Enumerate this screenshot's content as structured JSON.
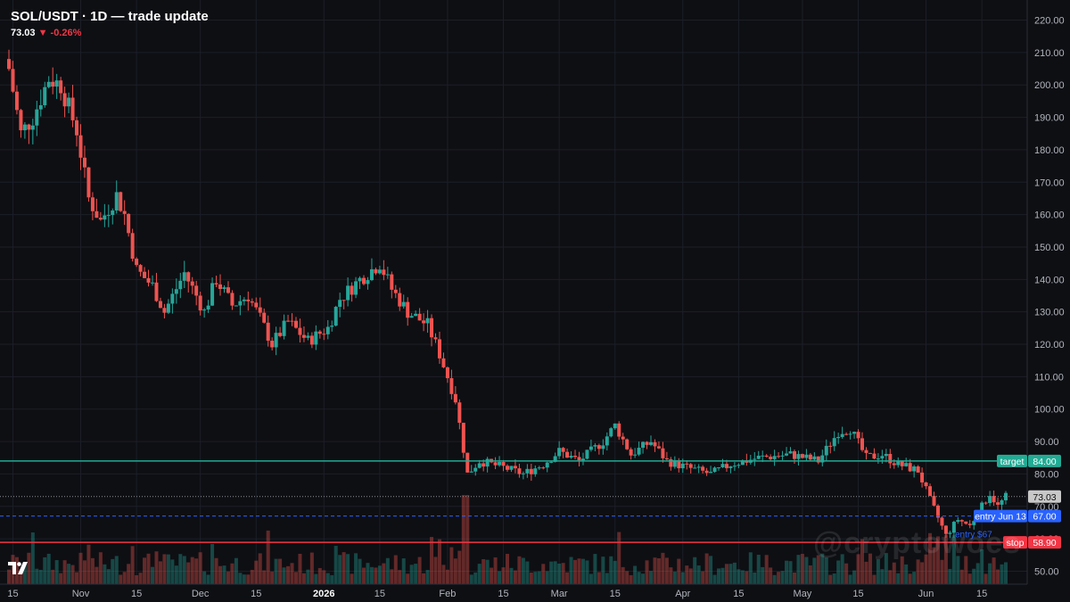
{
  "header": {
    "title": "SOL/USDT · 1D — trade update",
    "price": "73.03",
    "change_arrow": "▼",
    "change": "-0.26%"
  },
  "watermark": "@cryptowoes",
  "colors": {
    "bg": "#0e0f13",
    "up": "#26a69a",
    "down": "#ef5350",
    "target": "#22ab94",
    "entry": "#2962ff",
    "stop": "#f23645",
    "last": "#c8c8c8"
  },
  "chart_data": {
    "type": "candlestick",
    "symbol": "SOL/USDT",
    "interval": "1D",
    "ylim": [
      46,
      224
    ],
    "y_ticks": [
      "220.00",
      "210.00",
      "200.00",
      "190.00",
      "180.00",
      "170.00",
      "160.00",
      "150.00",
      "140.00",
      "130.00",
      "120.00",
      "110.00",
      "100.00",
      "90.00",
      "80.00",
      "70.00",
      "60.00",
      "50.00"
    ],
    "x_ticks": [
      "15",
      "Nov",
      "15",
      "Dec",
      "15",
      "2026",
      "15",
      "Feb",
      "15",
      "Mar",
      "15",
      "Apr",
      "15",
      "May",
      "15",
      "Jun",
      "15"
    ],
    "levels": [
      {
        "name": "target",
        "value": 84.0,
        "label": "84.00"
      },
      {
        "name": "last",
        "value": 73.03,
        "label": "73.03"
      },
      {
        "name": "entry Jun 13",
        "value": 67.0,
        "label": "67.00"
      },
      {
        "name": "stop",
        "value": 58.9,
        "label": "58.90"
      }
    ],
    "annotations": [
      {
        "text": "entry $67"
      }
    ],
    "close_path": [
      [
        "2025-10-14",
        205
      ],
      [
        "2025-10-17",
        185
      ],
      [
        "2025-10-20",
        190
      ],
      [
        "2025-10-24",
        202
      ],
      [
        "2025-10-27",
        200
      ],
      [
        "2025-10-31",
        186
      ],
      [
        "2025-11-03",
        165
      ],
      [
        "2025-11-06",
        158
      ],
      [
        "2025-11-10",
        166
      ],
      [
        "2025-11-12",
        160
      ],
      [
        "2025-11-15",
        143
      ],
      [
        "2025-11-19",
        138
      ],
      [
        "2025-11-22",
        130
      ],
      [
        "2025-11-27",
        142
      ],
      [
        "2025-11-30",
        135
      ],
      [
        "2025-12-02",
        130
      ],
      [
        "2025-12-05",
        140
      ],
      [
        "2025-12-09",
        132
      ],
      [
        "2025-12-13",
        135
      ],
      [
        "2025-12-16",
        128
      ],
      [
        "2025-12-19",
        120
      ],
      [
        "2025-12-23",
        127
      ],
      [
        "2025-12-28",
        121
      ],
      [
        "2026-01-02",
        125
      ],
      [
        "2026-01-05",
        134
      ],
      [
        "2026-01-10",
        140
      ],
      [
        "2026-01-15",
        145
      ],
      [
        "2026-01-18",
        137
      ],
      [
        "2026-01-22",
        130
      ],
      [
        "2026-01-27",
        126
      ],
      [
        "2026-01-30",
        117
      ],
      [
        "2026-02-03",
        103
      ],
      [
        "2026-02-06",
        80
      ],
      [
        "2026-02-09",
        84
      ],
      [
        "2026-02-15",
        82
      ],
      [
        "2026-02-20",
        80
      ],
      [
        "2026-02-25",
        83
      ],
      [
        "2026-03-01",
        87
      ],
      [
        "2026-03-06",
        84
      ],
      [
        "2026-03-12",
        90
      ],
      [
        "2026-03-15",
        95
      ],
      [
        "2026-03-19",
        86
      ],
      [
        "2026-03-24",
        90
      ],
      [
        "2026-03-28",
        84
      ],
      [
        "2026-04-02",
        82
      ],
      [
        "2026-04-08",
        80
      ],
      [
        "2026-04-13",
        83
      ],
      [
        "2026-04-20",
        85
      ],
      [
        "2026-04-28",
        86
      ],
      [
        "2026-05-05",
        84
      ],
      [
        "2026-05-10",
        93
      ],
      [
        "2026-05-13",
        94
      ],
      [
        "2026-05-17",
        85
      ],
      [
        "2026-05-21",
        86
      ],
      [
        "2026-05-25",
        83
      ],
      [
        "2026-05-30",
        81
      ],
      [
        "2026-06-02",
        72
      ],
      [
        "2026-06-06",
        61
      ],
      [
        "2026-06-09",
        66
      ],
      [
        "2026-06-12",
        64
      ],
      [
        "2026-06-15",
        70
      ],
      [
        "2026-06-17",
        74
      ],
      [
        "2026-06-19",
        70
      ],
      [
        "2026-06-21",
        73
      ]
    ]
  }
}
